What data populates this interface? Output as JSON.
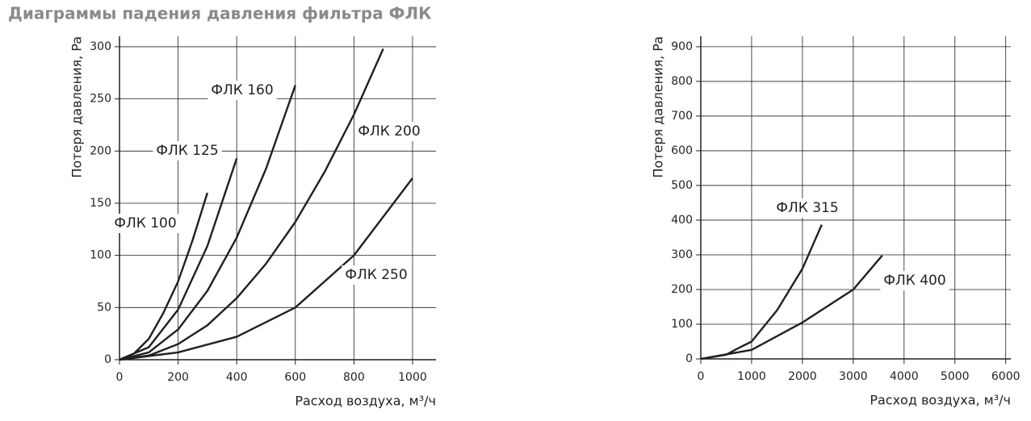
{
  "title": "Диаграммы падения давления фильтра ФЛК",
  "chart_data": [
    {
      "type": "line",
      "x_label": "Расход воздуха, м³/ч",
      "y_label": "Потеря давления, Pa",
      "xlim": [
        0,
        1080
      ],
      "xticks": [
        0,
        200,
        400,
        600,
        800,
        1000
      ],
      "ylim": [
        0,
        310
      ],
      "yticks": [
        0,
        50,
        100,
        150,
        200,
        250,
        300
      ],
      "grid": true,
      "series": [
        {
          "name": "ФЛК 100",
          "color": "#231f20",
          "x": [
            0,
            50,
            100,
            150,
            200,
            250,
            300
          ],
          "values": [
            0,
            6,
            20,
            45,
            75,
            115,
            160
          ]
        },
        {
          "name": "ФЛК 125",
          "color": "#231f20",
          "x": [
            0,
            100,
            200,
            300,
            400
          ],
          "values": [
            0,
            12,
            48,
            109,
            193
          ]
        },
        {
          "name": "ФЛК 160",
          "color": "#231f20",
          "x": [
            0,
            100,
            200,
            300,
            400,
            500,
            600
          ],
          "values": [
            0,
            7,
            29,
            66,
            117,
            183,
            263
          ]
        },
        {
          "name": "ФЛК 200",
          "color": "#231f20",
          "x": [
            0,
            100,
            200,
            300,
            400,
            500,
            600,
            700,
            800,
            900
          ],
          "values": [
            0,
            4,
            15,
            33,
            59,
            92,
            132,
            180,
            235,
            298
          ]
        },
        {
          "name": "ФЛК 250",
          "color": "#231f20",
          "x": [
            0,
            200,
            400,
            600,
            800,
            1000
          ],
          "values": [
            0,
            7,
            22,
            50,
            100,
            174
          ]
        }
      ]
    },
    {
      "type": "line",
      "x_label": "Расход воздуха, м³/ч",
      "y_label": "Потеря давления, Pa",
      "xlim": [
        0,
        6100
      ],
      "xticks": [
        0,
        1000,
        2000,
        3000,
        4000,
        5000,
        6000
      ],
      "ylim": [
        0,
        930
      ],
      "yticks": [
        0,
        100,
        200,
        300,
        400,
        500,
        600,
        700,
        800,
        900
      ],
      "grid": true,
      "series": [
        {
          "name": "ФЛК 315",
          "color": "#231f20",
          "x": [
            0,
            500,
            700,
            1000,
            1500,
            2000,
            2380
          ],
          "values": [
            0,
            12,
            28,
            50,
            140,
            260,
            387
          ]
        },
        {
          "name": "ФЛК 400",
          "color": "#231f20",
          "x": [
            0,
            1000,
            2000,
            3000,
            3570
          ],
          "values": [
            0,
            26,
            105,
            200,
            298
          ]
        }
      ]
    }
  ]
}
